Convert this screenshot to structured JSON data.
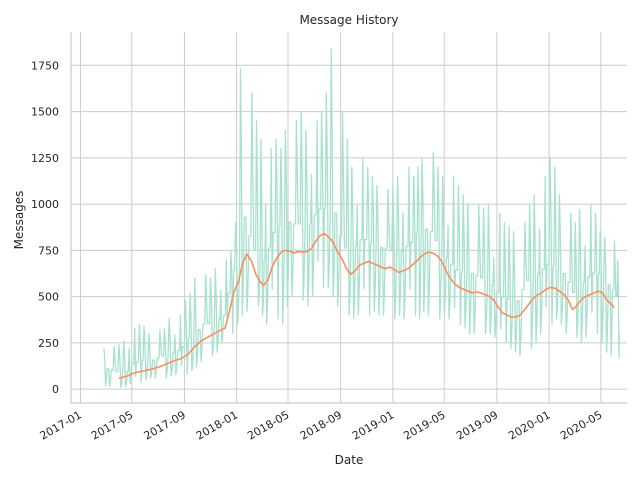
{
  "chart_data": {
    "type": "line",
    "title": "Message History",
    "xlabel": "Date",
    "ylabel": "Messages",
    "grid": true,
    "xlim": [
      "2016-12-10",
      "2020-07-01"
    ],
    "ylim": [
      -75,
      1930
    ],
    "x_ticks": [
      "2017-01",
      "2017-05",
      "2017-09",
      "2018-01",
      "2018-05",
      "2018-09",
      "2019-01",
      "2019-05",
      "2019-09",
      "2020-01",
      "2020-05"
    ],
    "y_ticks": [
      0,
      250,
      500,
      750,
      1000,
      1250,
      1500,
      1750
    ],
    "series": [
      {
        "style": "raw daily messages",
        "color": "#a8e2cd",
        "x": [
          "2017-02-25",
          "2017-03-10",
          "2017-03-25",
          "2017-04-10",
          "2017-04-25",
          "2017-05-10",
          "2017-05-25",
          "2017-06-10",
          "2017-06-25",
          "2017-07-10",
          "2017-07-25",
          "2017-08-10",
          "2017-08-25",
          "2017-09-10",
          "2017-09-25",
          "2017-10-10",
          "2017-10-25",
          "2017-11-10",
          "2017-11-25",
          "2017-12-10",
          "2017-12-25",
          "2018-01-10",
          "2018-01-25",
          "2018-02-10",
          "2018-02-25",
          "2018-03-10",
          "2018-03-25",
          "2018-04-10",
          "2018-04-25",
          "2018-05-10",
          "2018-05-25",
          "2018-06-10",
          "2018-06-25",
          "2018-07-10",
          "2018-07-25",
          "2018-08-10",
          "2018-08-25",
          "2018-09-10",
          "2018-09-25",
          "2018-10-10",
          "2018-10-25",
          "2018-11-10",
          "2018-11-25",
          "2018-12-10",
          "2018-12-25",
          "2019-01-10",
          "2019-01-25",
          "2019-02-10",
          "2019-02-25",
          "2019-03-10",
          "2019-03-25",
          "2019-04-10",
          "2019-04-25",
          "2019-05-10",
          "2019-05-25",
          "2019-06-10",
          "2019-06-25",
          "2019-07-10",
          "2019-07-25",
          "2019-08-10",
          "2019-08-25",
          "2019-09-10",
          "2019-09-25",
          "2019-10-10",
          "2019-10-25",
          "2019-11-10",
          "2019-11-25",
          "2019-12-10",
          "2019-12-25",
          "2020-01-10",
          "2020-01-25",
          "2020-02-10",
          "2020-02-25",
          "2020-03-10",
          "2020-03-25",
          "2020-04-10",
          "2020-04-25",
          "2020-05-10",
          "2020-05-25",
          "2020-06-05"
        ],
        "low": [
          20,
          15,
          10,
          15,
          30,
          40,
          50,
          60,
          60,
          60,
          70,
          80,
          80,
          100,
          120,
          150,
          180,
          200,
          250,
          300,
          350,
          400,
          420,
          450,
          400,
          350,
          380,
          350,
          450,
          500,
          480,
          450,
          500,
          550,
          550,
          500,
          450,
          400,
          380,
          400,
          400,
          420,
          400,
          400,
          380,
          400,
          380,
          400,
          380,
          420,
          400,
          380,
          400,
          380,
          350,
          330,
          300,
          300,
          300,
          300,
          280,
          250,
          220,
          200,
          180,
          220,
          250,
          300,
          350,
          380,
          350,
          300,
          280,
          250,
          280,
          300,
          250,
          200,
          180,
          170
        ],
        "high": [
          220,
          230,
          240,
          260,
          330,
          350,
          340,
          300,
          320,
          330,
          380,
          400,
          480,
          520,
          600,
          620,
          600,
          650,
          700,
          750,
          900,
          1730,
          1600,
          1450,
          1350,
          1300,
          1350,
          1300,
          1400,
          1450,
          1500,
          1400,
          1450,
          1500,
          1600,
          1840,
          1500,
          1350,
          1200,
          1250,
          1200,
          1150,
          1100,
          1080,
          1100,
          1150,
          1200,
          1150,
          1200,
          1250,
          1280,
          1200,
          1150,
          1150,
          1100,
          1050,
          1000,
          1000,
          980,
          1000,
          950,
          900,
          880,
          850,
          900,
          1000,
          1050,
          1150,
          1250,
          1200,
          1050,
          950,
          900,
          970,
          1000,
          950,
          850,
          820,
          800,
          700
        ],
        "mid": [
          80,
          70,
          60,
          60,
          90,
          100,
          110,
          120,
          130,
          140,
          150,
          160,
          170,
          210,
          250,
          280,
          290,
          310,
          330,
          450,
          560,
          730,
          650,
          600,
          560,
          620,
          700,
          740,
          760,
          750,
          740,
          750,
          800,
          830,
          820,
          750,
          670,
          620,
          650,
          680,
          690,
          680,
          660,
          660,
          640,
          630,
          650,
          680,
          720,
          740,
          720,
          680,
          600,
          560,
          530,
          520,
          520,
          510,
          500,
          460,
          420,
          400,
          390,
          380,
          430,
          470,
          500,
          520,
          540,
          540,
          520,
          480,
          430,
          470,
          500,
          530,
          530,
          470,
          440,
          420
        ]
      },
      {
        "style": "rolling average",
        "color": "#fc8d62",
        "x": [
          "2017-04-01",
          "2017-04-20",
          "2017-05-10",
          "2017-06-01",
          "2017-06-20",
          "2017-07-10",
          "2017-07-25",
          "2017-08-10",
          "2017-08-25",
          "2017-09-10",
          "2017-09-25",
          "2017-10-10",
          "2017-10-25",
          "2017-11-10",
          "2017-11-25",
          "2017-12-05",
          "2017-12-15",
          "2017-12-25",
          "2018-01-05",
          "2018-01-15",
          "2018-01-25",
          "2018-02-05",
          "2018-02-15",
          "2018-02-25",
          "2018-03-05",
          "2018-03-15",
          "2018-03-25",
          "2018-04-05",
          "2018-04-15",
          "2018-04-25",
          "2018-05-05",
          "2018-05-15",
          "2018-05-25",
          "2018-06-05",
          "2018-06-15",
          "2018-06-25",
          "2018-07-05",
          "2018-07-15",
          "2018-07-25",
          "2018-08-05",
          "2018-08-15",
          "2018-08-25",
          "2018-09-05",
          "2018-09-15",
          "2018-09-25",
          "2018-10-05",
          "2018-10-15",
          "2018-10-25",
          "2018-11-05",
          "2018-11-15",
          "2018-11-25",
          "2018-12-05",
          "2018-12-15",
          "2018-12-25",
          "2019-01-05",
          "2019-01-15",
          "2019-01-25",
          "2019-02-05",
          "2019-02-15",
          "2019-02-25",
          "2019-03-05",
          "2019-03-15",
          "2019-03-25",
          "2019-04-05",
          "2019-04-15",
          "2019-04-25",
          "2019-05-05",
          "2019-05-15",
          "2019-05-25",
          "2019-06-05",
          "2019-06-15",
          "2019-06-25",
          "2019-07-05",
          "2019-07-15",
          "2019-07-25",
          "2019-08-05",
          "2019-08-15",
          "2019-08-25",
          "2019-09-05",
          "2019-09-15",
          "2019-09-25",
          "2019-10-05",
          "2019-10-15",
          "2019-10-25",
          "2019-11-05",
          "2019-11-15",
          "2019-11-25",
          "2019-12-05",
          "2019-12-15",
          "2019-12-25",
          "2020-01-05",
          "2020-01-15",
          "2020-01-25",
          "2020-02-05",
          "2020-02-15",
          "2020-02-25",
          "2020-03-05",
          "2020-03-15",
          "2020-03-25",
          "2020-04-05",
          "2020-04-15",
          "2020-04-25",
          "2020-05-05",
          "2020-05-15",
          "2020-05-25",
          "2020-06-01"
        ],
        "y": [
          60,
          70,
          90,
          100,
          110,
          125,
          140,
          155,
          165,
          190,
          230,
          260,
          280,
          300,
          320,
          330,
          420,
          520,
          580,
          680,
          730,
          690,
          620,
          580,
          560,
          590,
          660,
          710,
          740,
          750,
          745,
          735,
          745,
          740,
          745,
          760,
          800,
          830,
          840,
          820,
          790,
          740,
          700,
          650,
          620,
          640,
          670,
          680,
          690,
          680,
          670,
          660,
          650,
          660,
          645,
          630,
          640,
          650,
          670,
          690,
          710,
          730,
          740,
          735,
          720,
          690,
          640,
          600,
          570,
          550,
          540,
          530,
          520,
          525,
          520,
          510,
          500,
          480,
          440,
          410,
          400,
          390,
          390,
          400,
          430,
          460,
          490,
          510,
          520,
          540,
          550,
          545,
          530,
          510,
          480,
          430,
          450,
          480,
          500,
          510,
          520,
          530,
          520,
          480,
          460,
          440
        ]
      }
    ]
  }
}
